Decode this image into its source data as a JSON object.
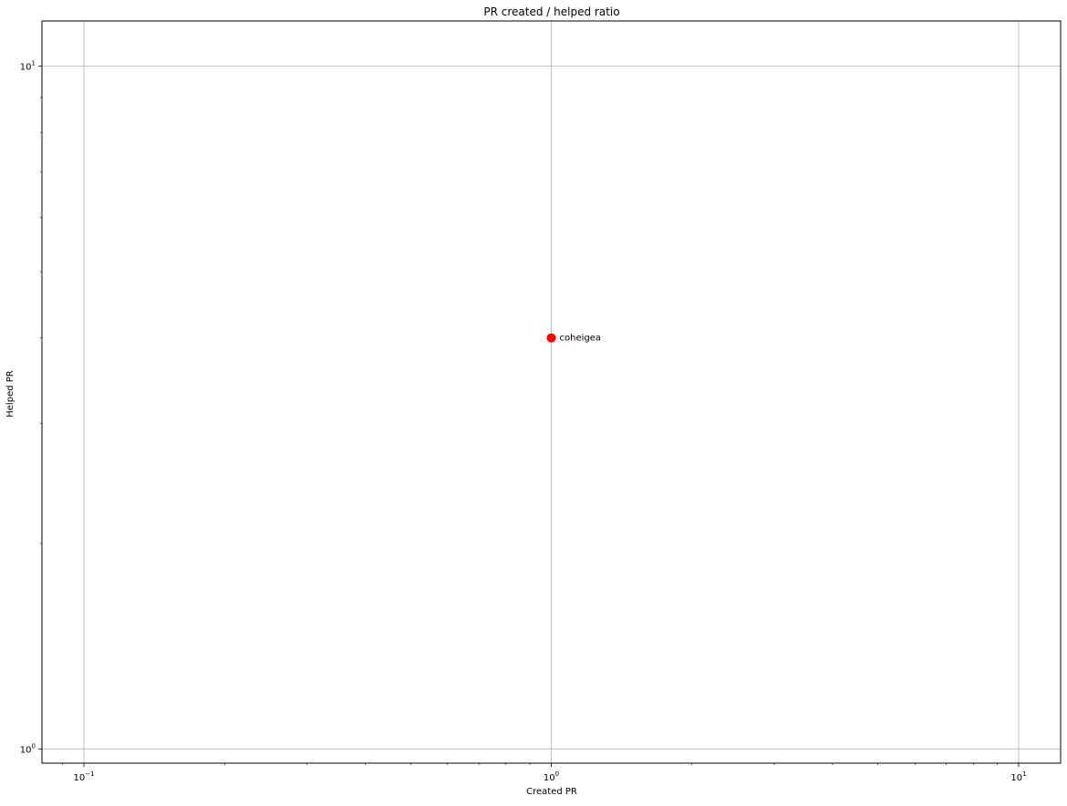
{
  "chart_data": {
    "type": "scatter",
    "title": "PR created / helped ratio",
    "xlabel": "Created PR",
    "ylabel": "Helped PR",
    "xscale": "log",
    "yscale": "log",
    "xlim": [
      0.0813,
      12.3
    ],
    "ylim": [
      0.953,
      11.65
    ],
    "grid": true,
    "x_major_ticks": [
      {
        "value": 0.1,
        "base": "10",
        "exp": "−1"
      },
      {
        "value": 1,
        "base": "10",
        "exp": "0"
      },
      {
        "value": 10,
        "base": "10",
        "exp": "1"
      }
    ],
    "y_major_ticks": [
      {
        "value": 1,
        "base": "10",
        "exp": "0"
      },
      {
        "value": 10,
        "base": "10",
        "exp": "1"
      }
    ],
    "points": [
      {
        "x": 1,
        "y": 4,
        "label": "coheigea",
        "color": "#ff0000"
      }
    ]
  }
}
